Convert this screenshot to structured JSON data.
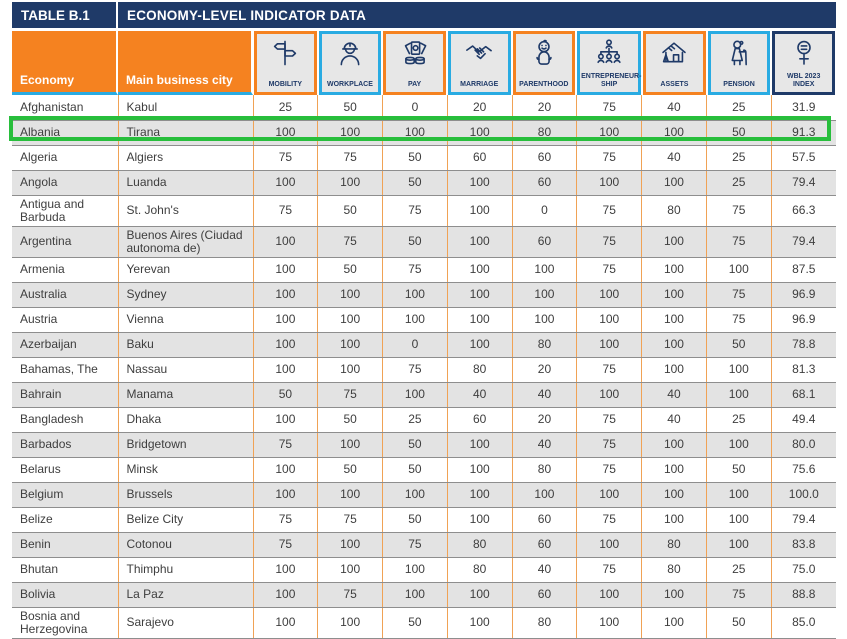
{
  "title_bar": {
    "table_label": "TABLE B.1",
    "title": "ECONOMY-LEVEL INDICATOR DATA"
  },
  "header": {
    "economy_label": "Economy",
    "city_label": "Main business city",
    "indicators": [
      {
        "label": "MOBILITY",
        "icon": "signpost-icon",
        "accent": "orange"
      },
      {
        "label": "WORKPLACE",
        "icon": "woman-worker-icon",
        "accent": "blue"
      },
      {
        "label": "PAY",
        "icon": "money-icon",
        "accent": "orange"
      },
      {
        "label": "MARRIAGE",
        "icon": "handshake-icon",
        "accent": "blue"
      },
      {
        "label": "PARENTHOOD",
        "icon": "baby-icon",
        "accent": "orange"
      },
      {
        "label": "ENTREPRENEUR-SHIP",
        "icon": "org-chart-women-icon",
        "accent": "blue"
      },
      {
        "label": "ASSETS",
        "icon": "house-icon",
        "accent": "orange"
      },
      {
        "label": "PENSION",
        "icon": "elderly-woman-icon",
        "accent": "blue"
      },
      {
        "label": "WBL 2023 INDEX",
        "icon": "gender-equality-icon",
        "accent": "navy"
      }
    ]
  },
  "highlight": {
    "row_economy": "Albania",
    "color": "#28BE3C"
  },
  "colors": {
    "navy": "#1F3A68",
    "orange": "#F58220",
    "blue": "#29ABE2",
    "row_alt": "#E3E3E3",
    "icon_bg": "#E7E7E7",
    "green": "#28BE3C",
    "grid_orange": "#F0A255",
    "row_line": "#8E8E8E"
  },
  "table": {
    "rows": [
      {
        "economy": "Afghanistan",
        "city": "Kabul",
        "values": [
          "25",
          "50",
          "0",
          "20",
          "20",
          "75",
          "40",
          "25",
          "31.9"
        ],
        "highlighted": false
      },
      {
        "economy": "Albania",
        "city": "Tirana",
        "values": [
          "100",
          "100",
          "100",
          "100",
          "80",
          "100",
          "100",
          "50",
          "91.3"
        ],
        "highlighted": true
      },
      {
        "economy": "Algeria",
        "city": "Algiers",
        "values": [
          "75",
          "75",
          "50",
          "60",
          "60",
          "75",
          "40",
          "25",
          "57.5"
        ],
        "highlighted": false
      },
      {
        "economy": "Angola",
        "city": "Luanda",
        "values": [
          "100",
          "100",
          "50",
          "100",
          "60",
          "100",
          "100",
          "25",
          "79.4"
        ],
        "highlighted": false
      },
      {
        "economy": "Antigua and Barbuda",
        "city": "St. John's",
        "values": [
          "75",
          "50",
          "75",
          "100",
          "0",
          "75",
          "80",
          "75",
          "66.3"
        ],
        "highlighted": false
      },
      {
        "economy": "Argentina",
        "city": "Buenos Aires (Ciudad autonoma de)",
        "values": [
          "100",
          "75",
          "50",
          "100",
          "60",
          "75",
          "100",
          "75",
          "79.4"
        ],
        "highlighted": false
      },
      {
        "economy": "Armenia",
        "city": "Yerevan",
        "values": [
          "100",
          "50",
          "75",
          "100",
          "100",
          "75",
          "100",
          "100",
          "87.5"
        ],
        "highlighted": false
      },
      {
        "economy": "Australia",
        "city": "Sydney",
        "values": [
          "100",
          "100",
          "100",
          "100",
          "100",
          "100",
          "100",
          "75",
          "96.9"
        ],
        "highlighted": false
      },
      {
        "economy": "Austria",
        "city": "Vienna",
        "values": [
          "100",
          "100",
          "100",
          "100",
          "100",
          "100",
          "100",
          "75",
          "96.9"
        ],
        "highlighted": false
      },
      {
        "economy": "Azerbaijan",
        "city": "Baku",
        "values": [
          "100",
          "100",
          "0",
          "100",
          "80",
          "100",
          "100",
          "50",
          "78.8"
        ],
        "highlighted": false
      },
      {
        "economy": "Bahamas, The",
        "city": "Nassau",
        "values": [
          "100",
          "100",
          "75",
          "80",
          "20",
          "75",
          "100",
          "100",
          "81.3"
        ],
        "highlighted": false
      },
      {
        "economy": "Bahrain",
        "city": "Manama",
        "values": [
          "50",
          "75",
          "100",
          "40",
          "40",
          "100",
          "40",
          "100",
          "68.1"
        ],
        "highlighted": false
      },
      {
        "economy": "Bangladesh",
        "city": "Dhaka",
        "values": [
          "100",
          "50",
          "25",
          "60",
          "20",
          "75",
          "40",
          "25",
          "49.4"
        ],
        "highlighted": false
      },
      {
        "economy": "Barbados",
        "city": "Bridgetown",
        "values": [
          "75",
          "100",
          "50",
          "100",
          "40",
          "75",
          "100",
          "100",
          "80.0"
        ],
        "highlighted": false
      },
      {
        "economy": "Belarus",
        "city": "Minsk",
        "values": [
          "100",
          "50",
          "50",
          "100",
          "80",
          "75",
          "100",
          "50",
          "75.6"
        ],
        "highlighted": false
      },
      {
        "economy": "Belgium",
        "city": "Brussels",
        "values": [
          "100",
          "100",
          "100",
          "100",
          "100",
          "100",
          "100",
          "100",
          "100.0"
        ],
        "highlighted": false
      },
      {
        "economy": "Belize",
        "city": "Belize City",
        "values": [
          "75",
          "75",
          "50",
          "100",
          "60",
          "75",
          "100",
          "100",
          "79.4"
        ],
        "highlighted": false
      },
      {
        "economy": "Benin",
        "city": "Cotonou",
        "values": [
          "75",
          "100",
          "75",
          "80",
          "60",
          "100",
          "80",
          "100",
          "83.8"
        ],
        "highlighted": false
      },
      {
        "economy": "Bhutan",
        "city": "Thimphu",
        "values": [
          "100",
          "100",
          "100",
          "80",
          "40",
          "75",
          "80",
          "25",
          "75.0"
        ],
        "highlighted": false
      },
      {
        "economy": "Bolivia",
        "city": "La Paz",
        "values": [
          "100",
          "75",
          "100",
          "100",
          "60",
          "100",
          "100",
          "75",
          "88.8"
        ],
        "highlighted": false
      },
      {
        "economy": "Bosnia and Herzegovina",
        "city": "Sarajevo",
        "values": [
          "100",
          "100",
          "50",
          "100",
          "80",
          "100",
          "100",
          "50",
          "85.0"
        ],
        "highlighted": false
      }
    ]
  }
}
